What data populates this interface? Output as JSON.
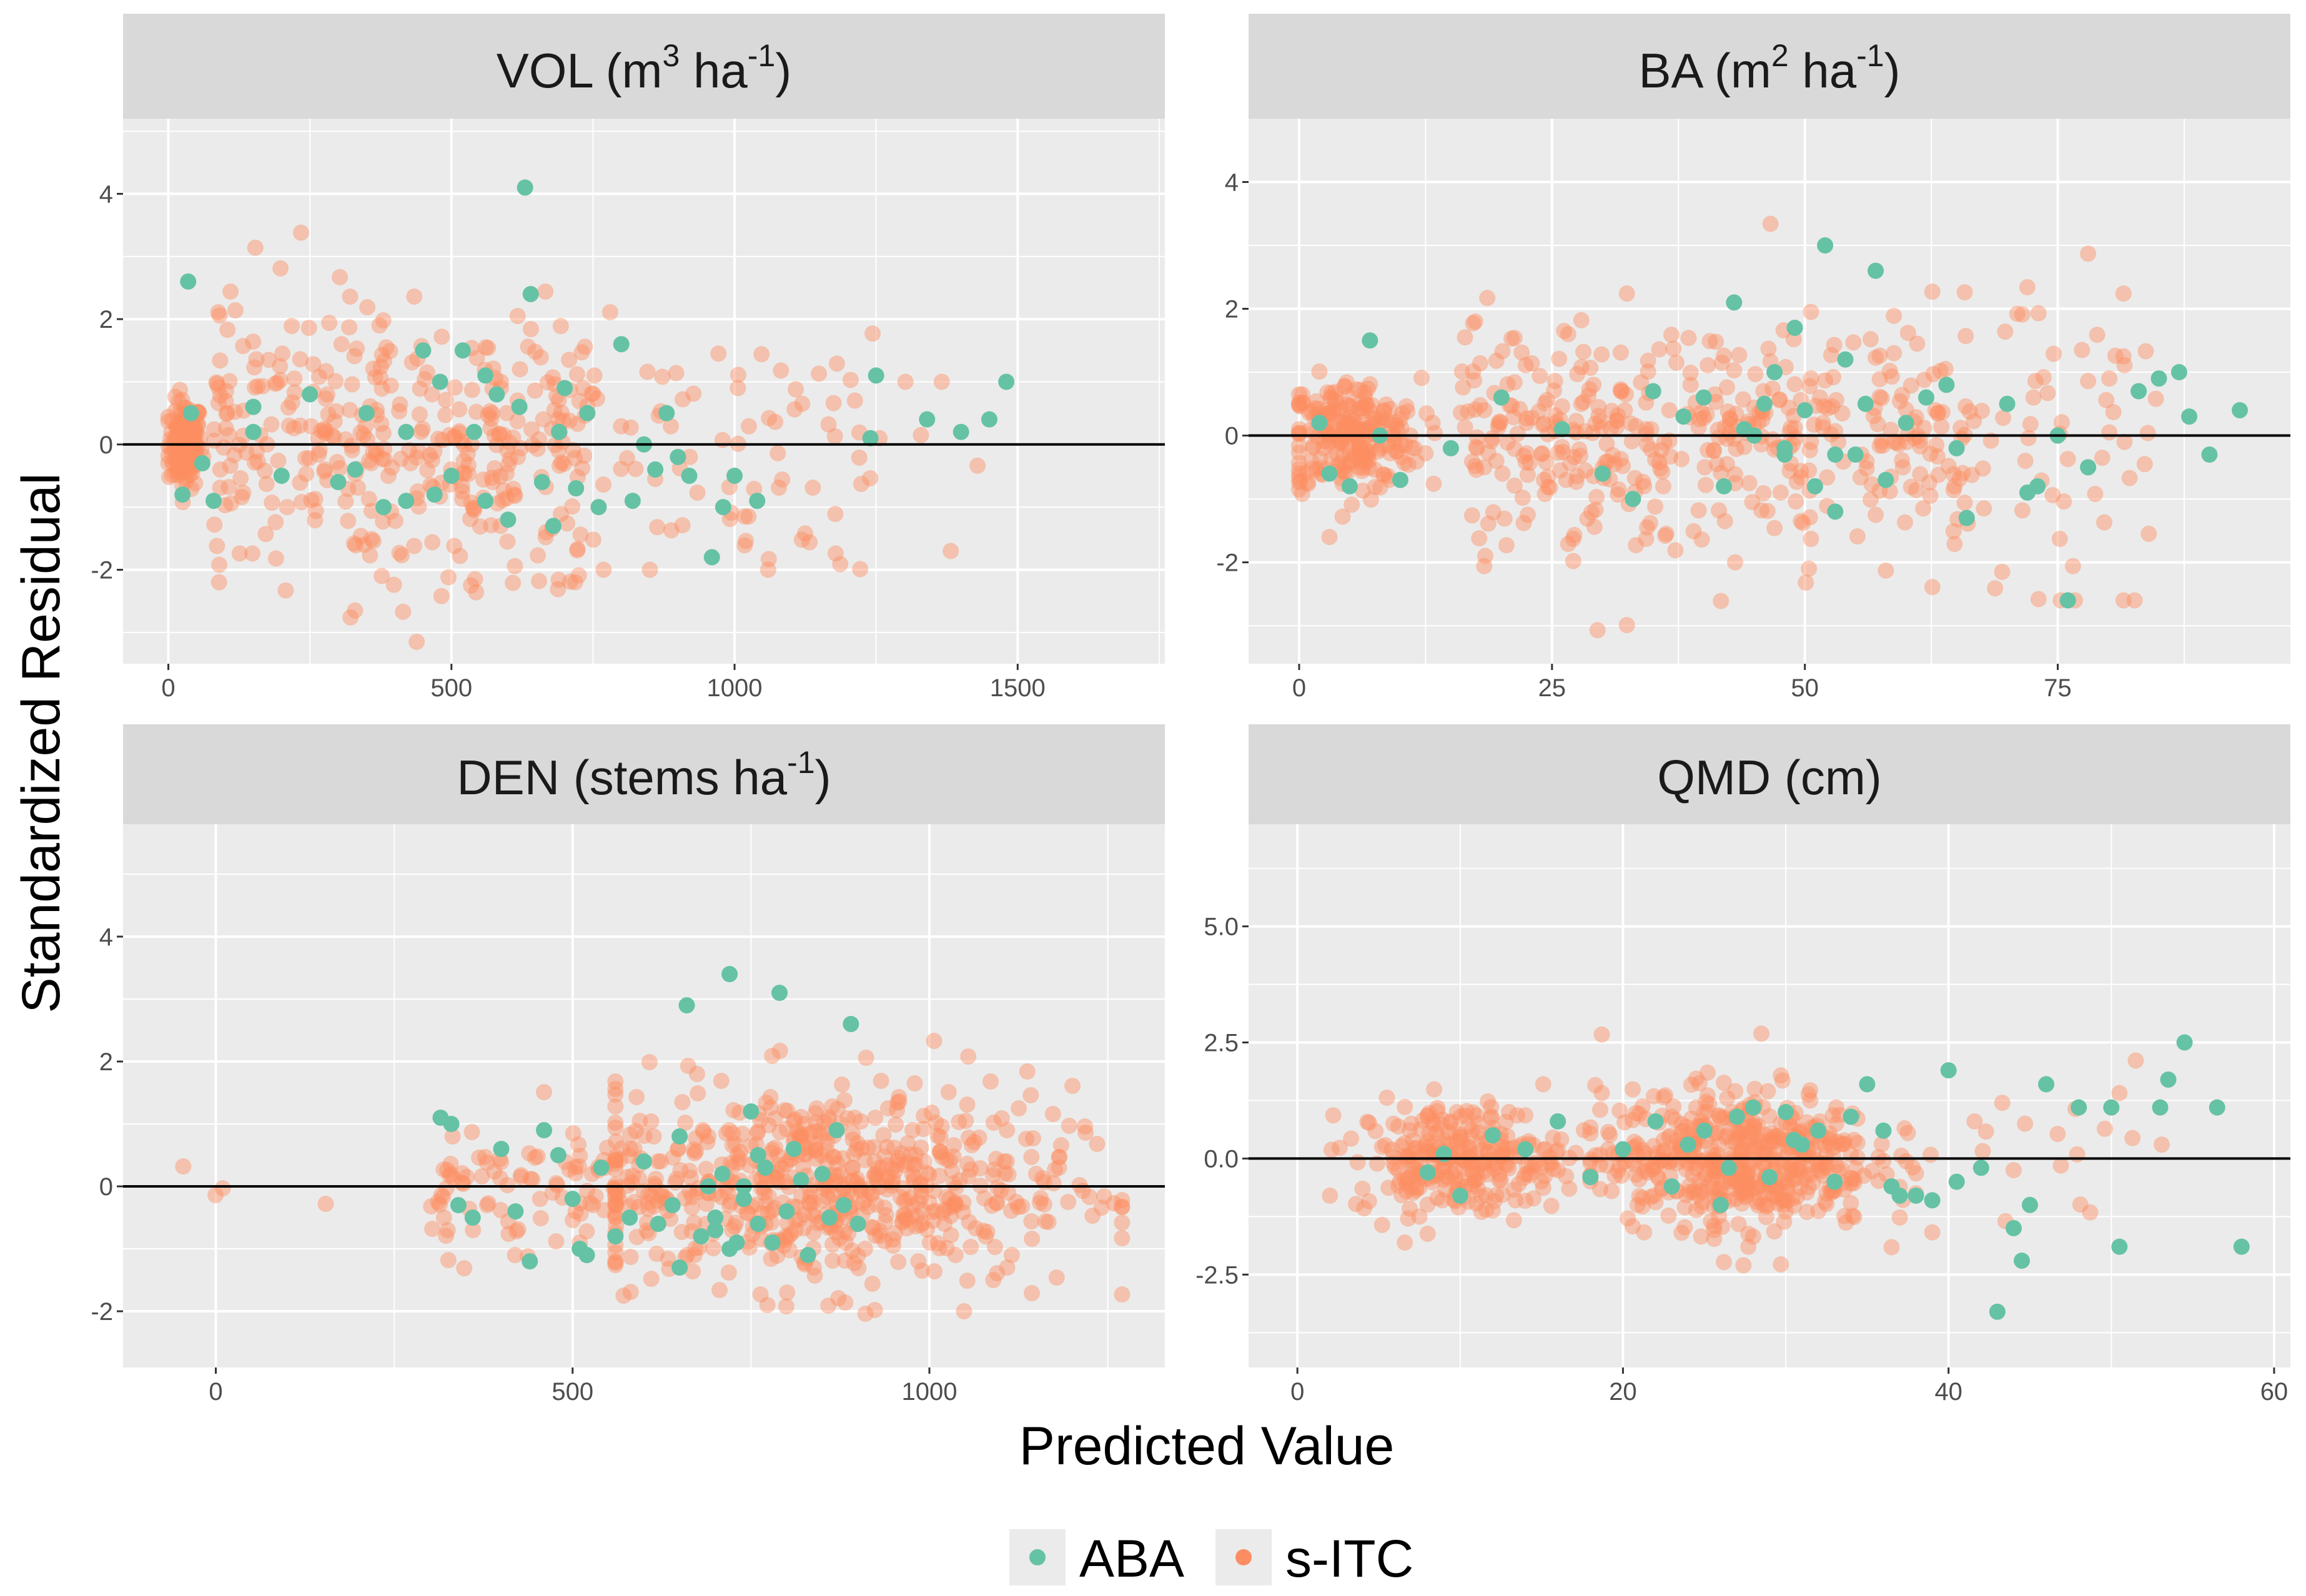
{
  "figure": {
    "xlabel": "Predicted Value",
    "ylabel": "Standardized Residual"
  },
  "legend": {
    "items": [
      {
        "label": "ABA",
        "color": "#66c2a5"
      },
      {
        "label": "s-ITC",
        "color": "#fc8d62"
      }
    ]
  },
  "colors": {
    "panel_bg": "#ebebeb",
    "strip_bg": "#d9d9d9",
    "grid": "#ffffff",
    "zero_line": "#000000"
  },
  "chart_data": [
    {
      "type": "scatter",
      "title": "VOL (m3 ha-1)",
      "title_parts": {
        "base": "VOL (m",
        "sup1": "3",
        "mid": " ha",
        "sup2": "-1",
        "end": ")"
      },
      "xlim": [
        -80,
        1760
      ],
      "ylim": [
        -3.5,
        5.2
      ],
      "xticks": [
        0,
        500,
        1000,
        1500
      ],
      "xtick_labels": [
        "0",
        "500",
        "1000",
        "1500"
      ],
      "yticks": [
        -2,
        0,
        2,
        4
      ],
      "ytick_labels": [
        "-2",
        "0",
        "2",
        "4"
      ],
      "reference_line": 0,
      "series": [
        {
          "name": "ABA",
          "x": [
            35,
            40,
            25,
            60,
            80,
            150,
            200,
            250,
            300,
            350,
            380,
            420,
            450,
            470,
            480,
            500,
            520,
            540,
            560,
            580,
            600,
            620,
            630,
            640,
            660,
            680,
            700,
            720,
            740,
            760,
            800,
            820,
            840,
            860,
            880,
            900,
            920,
            960,
            980,
            1000,
            1040,
            1240,
            1250,
            1340,
            1400,
            1450,
            1480,
            420,
            560,
            690,
            150,
            330
          ],
          "y": [
            2.6,
            0.5,
            -0.8,
            -0.3,
            -0.9,
            0.6,
            -0.5,
            0.8,
            -0.6,
            0.5,
            -1.0,
            0.2,
            1.5,
            -0.8,
            1.0,
            -0.5,
            1.5,
            0.2,
            -0.9,
            0.8,
            -1.2,
            0.6,
            4.1,
            2.4,
            -0.6,
            -1.3,
            0.9,
            -0.7,
            0.5,
            -1.0,
            1.6,
            -0.9,
            0.0,
            -0.4,
            0.5,
            -0.2,
            -0.5,
            -1.8,
            -1.0,
            -0.5,
            -0.9,
            0.1,
            1.1,
            0.4,
            0.2,
            0.4,
            1.0,
            -0.9,
            1.1,
            0.2,
            0.2,
            -0.4
          ]
        },
        {
          "name": "s-ITC",
          "x": [],
          "y": []
        }
      ]
    },
    {
      "type": "scatter",
      "title": "BA (m2 ha-1)",
      "title_parts": {
        "base": "BA (m",
        "sup1": "2",
        "mid": " ha",
        "sup2": "-1",
        "end": ")"
      },
      "xlim": [
        -5,
        98
      ],
      "ylim": [
        -3.6,
        5.0
      ],
      "xticks": [
        0,
        25,
        50,
        75
      ],
      "xtick_labels": [
        "0",
        "25",
        "50",
        "75"
      ],
      "yticks": [
        -2,
        0,
        2,
        4
      ],
      "ytick_labels": [
        "-2",
        "0",
        "2",
        "4"
      ],
      "reference_line": 0,
      "series": [
        {
          "name": "ABA",
          "x": [
            3,
            5,
            7,
            10,
            15,
            20,
            26,
            30,
            33,
            35,
            38,
            40,
            42,
            43,
            45,
            46,
            47,
            48,
            49,
            50,
            51,
            52,
            53,
            54,
            55,
            56,
            57,
            58,
            60,
            62,
            64,
            65,
            66,
            70,
            72,
            73,
            75,
            76,
            78,
            83,
            85,
            87,
            88,
            90,
            93,
            2,
            8,
            44,
            53,
            48
          ],
          "y": [
            -0.6,
            -0.8,
            1.5,
            -0.7,
            -0.2,
            0.6,
            0.1,
            -0.6,
            -1.0,
            0.7,
            0.3,
            0.6,
            -0.8,
            2.1,
            0.0,
            0.5,
            1.0,
            -0.3,
            1.7,
            0.4,
            -0.8,
            3.0,
            -0.3,
            1.2,
            -0.3,
            0.5,
            2.6,
            -0.7,
            0.2,
            0.6,
            0.8,
            -0.2,
            -1.3,
            0.5,
            -0.9,
            -0.8,
            0.0,
            -2.6,
            -0.5,
            0.7,
            0.9,
            1.0,
            0.3,
            -0.3,
            0.4,
            0.2,
            0.0,
            0.1,
            -1.2,
            -0.2
          ]
        },
        {
          "name": "s-ITC",
          "x": [],
          "y": []
        }
      ]
    },
    {
      "type": "scatter",
      "title": "DEN (stems ha-1)",
      "title_parts": {
        "base": "DEN (stems ha",
        "sup1": "",
        "mid": "",
        "sup2": "-1",
        "end": ")"
      },
      "xlim": [
        -130,
        1330
      ],
      "ylim": [
        -2.9,
        5.8
      ],
      "xticks": [
        0,
        500,
        1000
      ],
      "xtick_labels": [
        "0",
        "500",
        "1000"
      ],
      "yticks": [
        -2,
        0,
        2,
        4
      ],
      "ytick_labels": [
        "-2",
        "0",
        "2",
        "4"
      ],
      "reference_line": 0,
      "series": [
        {
          "name": "ABA",
          "x": [
            315,
            330,
            340,
            360,
            400,
            420,
            440,
            460,
            480,
            500,
            510,
            520,
            540,
            560,
            580,
            600,
            620,
            640,
            650,
            660,
            680,
            700,
            710,
            720,
            730,
            740,
            750,
            760,
            770,
            780,
            790,
            800,
            810,
            830,
            850,
            860,
            870,
            880,
            890,
            900,
            650,
            700,
            740,
            820,
            760,
            720,
            690
          ],
          "y": [
            1.1,
            1.0,
            -0.3,
            -0.5,
            0.6,
            -0.4,
            -1.2,
            0.9,
            0.5,
            -0.2,
            -1.0,
            -1.1,
            0.3,
            -0.8,
            -0.5,
            0.4,
            -0.6,
            -0.3,
            -1.3,
            2.9,
            -0.8,
            -0.5,
            0.2,
            3.4,
            -0.9,
            0.0,
            1.2,
            -0.6,
            0.3,
            -0.9,
            3.1,
            -0.4,
            0.6,
            -1.1,
            0.2,
            -0.5,
            0.9,
            -0.3,
            2.6,
            -0.6,
            0.8,
            -0.7,
            -0.2,
            0.1,
            0.5,
            -1.0,
            0.0
          ]
        },
        {
          "name": "s-ITC",
          "x": [],
          "y": []
        }
      ]
    },
    {
      "type": "scatter",
      "title": "QMD (cm)",
      "title_parts": {
        "base": "QMD (cm)",
        "sup1": "",
        "mid": "",
        "sup2": "",
        "end": ""
      },
      "xlim": [
        -3,
        61
      ],
      "ylim": [
        -4.5,
        7.2
      ],
      "xticks": [
        0,
        20,
        40,
        60
      ],
      "xtick_labels": [
        "0",
        "20",
        "40",
        "60"
      ],
      "yticks": [
        -2.5,
        0,
        2.5,
        5
      ],
      "ytick_labels": [
        "-2.5",
        "0.0",
        "2.5",
        "5.0"
      ],
      "reference_line": 0,
      "series": [
        {
          "name": "ABA",
          "x": [
            8,
            9,
            10,
            12,
            14,
            16,
            18,
            20,
            22,
            23,
            24,
            25,
            26,
            27,
            28,
            29,
            30,
            31,
            32,
            33,
            34,
            35,
            36,
            37,
            38,
            39,
            40,
            40.5,
            42,
            43,
            44,
            44.5,
            45,
            46,
            48,
            50,
            50.5,
            53,
            53.5,
            54.5,
            56.5,
            58,
            36.5,
            30.5,
            26.5
          ],
          "y": [
            -0.3,
            0.1,
            -0.8,
            0.5,
            0.2,
            0.8,
            -0.4,
            0.2,
            0.8,
            -0.6,
            0.3,
            0.6,
            -1.0,
            0.9,
            1.1,
            -0.4,
            1.0,
            0.3,
            0.6,
            -0.5,
            0.9,
            1.6,
            0.6,
            -0.8,
            -0.8,
            -0.9,
            1.9,
            -0.5,
            -0.2,
            -3.3,
            -1.5,
            -2.2,
            -1.0,
            1.6,
            1.1,
            1.1,
            -1.9,
            1.1,
            1.7,
            2.5,
            1.1,
            -1.9,
            -0.6,
            0.4,
            -0.2
          ]
        },
        {
          "name": "s-ITC",
          "x": [],
          "y": []
        }
      ]
    }
  ]
}
